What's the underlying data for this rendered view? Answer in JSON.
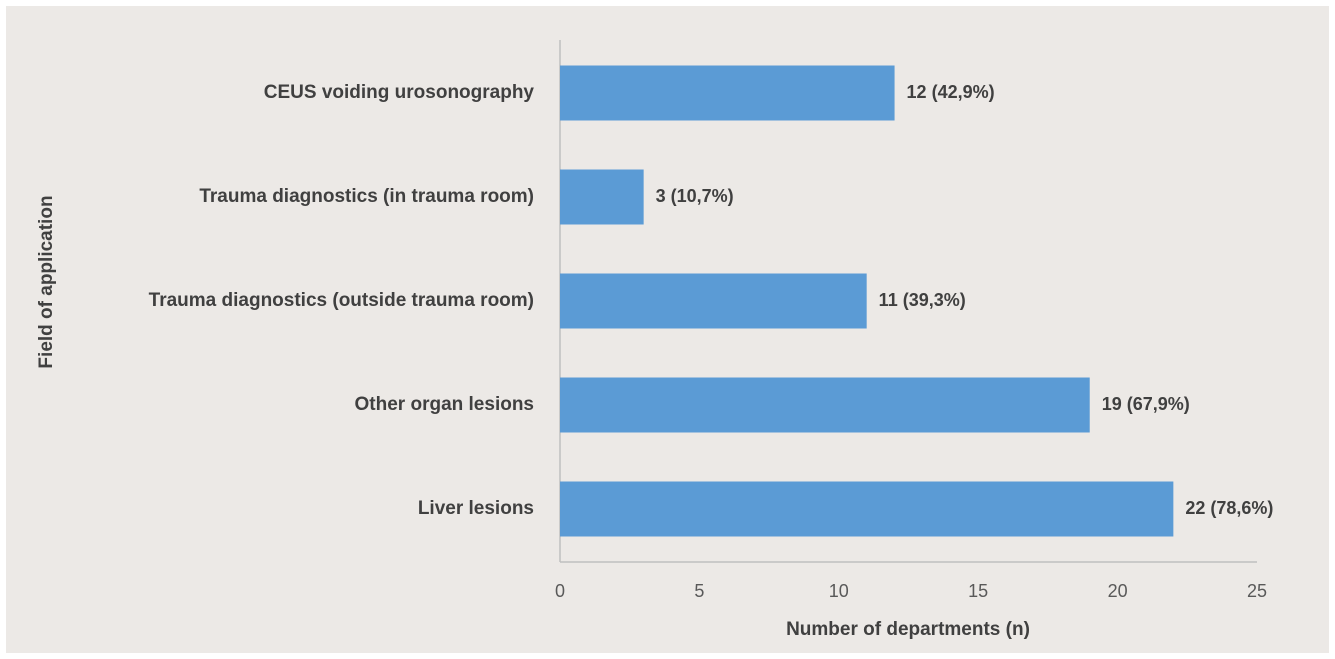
{
  "chart_data": {
    "type": "bar",
    "orientation": "horizontal",
    "x_label": "Number of departments (n)",
    "y_label": "Field of application",
    "categories": [
      "CEUS voiding urosonography",
      "Trauma diagnostics (in trauma room)",
      "Trauma diagnostics (outside trauma room)",
      "Other organ lesions",
      "Liver lesions"
    ],
    "values": [
      12,
      3,
      11,
      19,
      22
    ],
    "value_labels": [
      "12 (42,9%)",
      "3 (10,7%)",
      "11 (39,3%)",
      "19 (67,9%)",
      "22 (78,6%)"
    ],
    "color": "#5b9bd5",
    "xlim": [
      0,
      25
    ],
    "xticks": [
      0,
      5,
      10,
      15,
      20,
      25
    ],
    "grid": false
  }
}
